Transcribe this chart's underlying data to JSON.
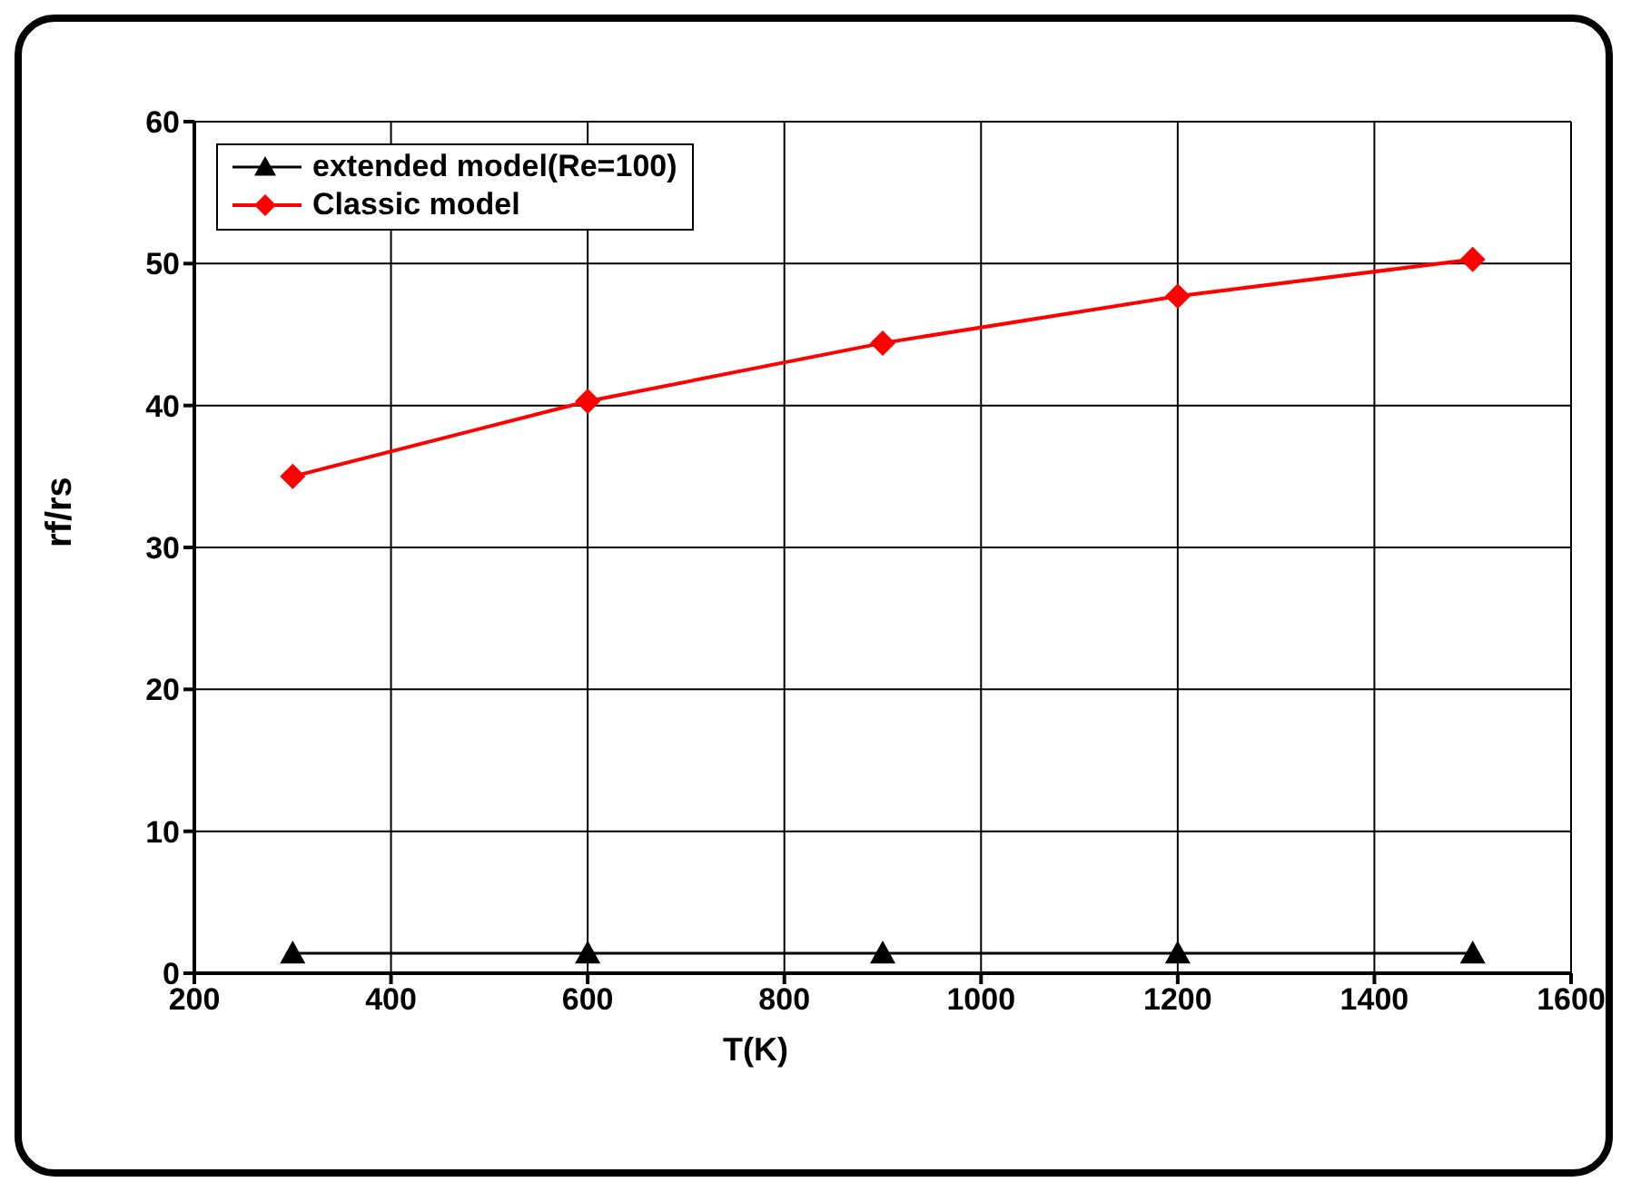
{
  "chart_data": {
    "type": "line",
    "xlabel": "T(K)",
    "ylabel": "rf/rs",
    "x": [
      300,
      600,
      900,
      1200,
      1500
    ],
    "series": [
      {
        "name": "extended model(Re=100)",
        "color": "#000000",
        "marker": "triangle",
        "values": [
          1.4,
          1.4,
          1.4,
          1.4,
          1.4
        ]
      },
      {
        "name": "Classic model",
        "color": "#ff0000",
        "marker": "diamond",
        "values": [
          35.0,
          40.3,
          44.4,
          47.7,
          50.3
        ]
      }
    ],
    "xlim": [
      200,
      1600
    ],
    "xticks": [
      200,
      400,
      600,
      800,
      1000,
      1200,
      1400,
      1600
    ],
    "ylim": [
      0,
      60
    ],
    "yticks": [
      0,
      10,
      20,
      30,
      40,
      50,
      60
    ],
    "grid": true,
    "legend": "top left"
  }
}
